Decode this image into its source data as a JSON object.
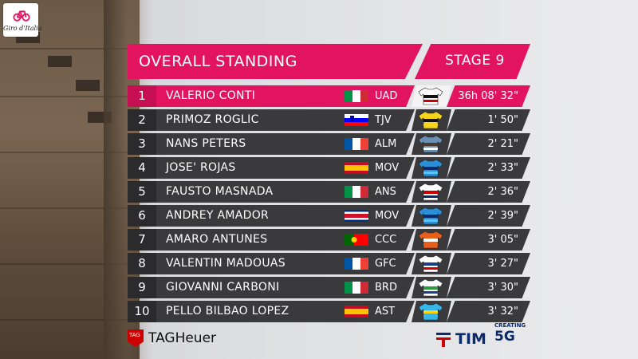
{
  "broadcast_logo": {
    "text": "Giro d'Italia",
    "icon": "bicycle-icon",
    "color": "#e2135f"
  },
  "header": {
    "title": "OVERALL STANDING",
    "stage": "STAGE 9",
    "accent_color": "#e2135f",
    "row_color": "#3a3a3c"
  },
  "standings": [
    {
      "position": "1",
      "rider": "VALERIO CONTI",
      "flag": "italy-flag",
      "team": "UAD",
      "jersey": "uae-jersey-icon",
      "time": "36h 08' 32\""
    },
    {
      "position": "2",
      "rider": "PRIMOZ ROGLIC",
      "flag": "slovenia-flag",
      "team": "TJV",
      "jersey": "jumbo-jersey-icon",
      "time": "1' 50\""
    },
    {
      "position": "3",
      "rider": "NANS PETERS",
      "flag": "france-flag",
      "team": "ALM",
      "jersey": "ag2r-jersey-icon",
      "time": "2' 21\""
    },
    {
      "position": "4",
      "rider": "JOSE' ROJAS",
      "flag": "spain-flag",
      "team": "MOV",
      "jersey": "movistar-jersey-icon",
      "time": "2' 33\""
    },
    {
      "position": "5",
      "rider": "FAUSTO MASNADA",
      "flag": "italy-flag",
      "team": "ANS",
      "jersey": "androni-jersey-icon",
      "time": "2' 36\""
    },
    {
      "position": "6",
      "rider": "ANDREY AMADOR",
      "flag": "costa-rica-flag",
      "team": "MOV",
      "jersey": "movistar-jersey-icon",
      "time": "2' 39\""
    },
    {
      "position": "7",
      "rider": "AMARO ANTUNES",
      "flag": "portugal-flag",
      "team": "CCC",
      "jersey": "ccc-jersey-icon",
      "time": "3' 05\""
    },
    {
      "position": "8",
      "rider": "VALENTIN MADOUAS",
      "flag": "france-flag",
      "team": "GFC",
      "jersey": "groupama-jersey-icon",
      "time": "3' 27\""
    },
    {
      "position": "9",
      "rider": "GIOVANNI CARBONI",
      "flag": "italy-flag",
      "team": "BRD",
      "jersey": "bardiani-jersey-icon",
      "time": "3' 30\""
    },
    {
      "position": "10",
      "rider": "PELLO BILBAO LOPEZ",
      "flag": "spain-flag",
      "team": "AST",
      "jersey": "astana-jersey-icon",
      "time": "3' 32\""
    }
  ],
  "sponsors": {
    "left": {
      "badge": "TAG",
      "text": "TAGHeuer"
    },
    "right": {
      "brand": "TIM",
      "tagline": "CREATING",
      "tag5g": "5G"
    }
  }
}
